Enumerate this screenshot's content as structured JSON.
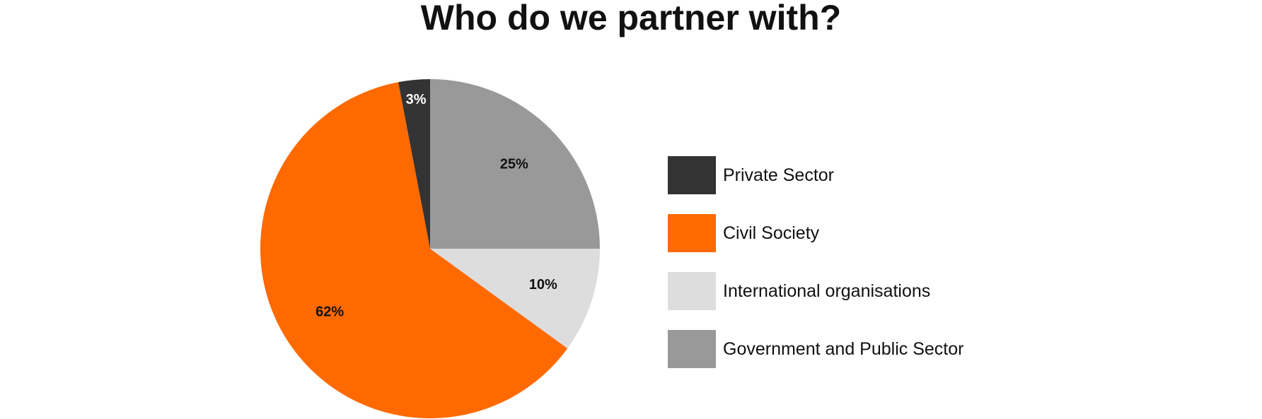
{
  "chart_data": {
    "type": "pie",
    "title": "Who do we partner with?",
    "series": [
      {
        "name": "Private Sector",
        "value": 3,
        "label": "3%",
        "color": "#333333",
        "label_color": "#ffffff"
      },
      {
        "name": "Civil Society",
        "value": 62,
        "label": "62%",
        "color": "#ff6a00",
        "label_color": "#111111"
      },
      {
        "name": "International organisations",
        "value": 10,
        "label": "10%",
        "color": "#dddddd",
        "label_color": "#111111"
      },
      {
        "name": "Government and Public Sector",
        "value": 25,
        "label": "25%",
        "color": "#999999",
        "label_color": "#111111"
      }
    ],
    "legend": {
      "position": "right"
    }
  }
}
